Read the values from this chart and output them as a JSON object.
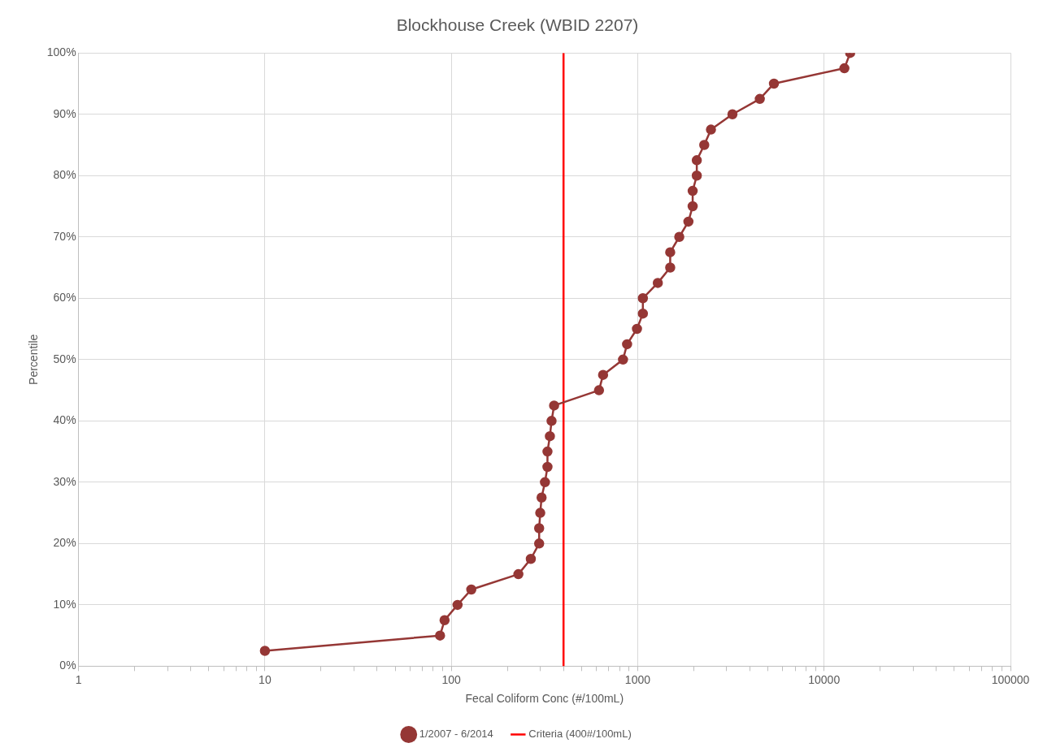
{
  "chart_data": {
    "type": "line",
    "title": "Blockhouse Creek (WBID 2207)",
    "xlabel": "Fecal Coliform Conc (#/100mL)",
    "ylabel": "Percentile",
    "log": "x",
    "xlim": [
      1,
      100000
    ],
    "xticks": [
      1,
      {
        "value": 2,
        "label": null
      },
      {
        "value": 3,
        "label": null
      },
      {
        "value": 4,
        "label": null
      },
      {
        "value": 5,
        "label": null
      },
      {
        "value": 6,
        "label": null
      },
      {
        "value": 7,
        "label": null
      },
      {
        "value": 8,
        "label": null
      },
      {
        "value": 9,
        "label": null
      },
      10,
      {
        "value": 20,
        "label": null
      },
      {
        "value": 30,
        "label": null
      },
      {
        "value": 40,
        "label": null
      },
      {
        "value": 50,
        "label": null
      },
      {
        "value": 60,
        "label": null
      },
      {
        "value": 70,
        "label": null
      },
      {
        "value": 80,
        "label": null
      },
      {
        "value": 90,
        "label": null
      },
      100,
      {
        "value": 200,
        "label": null
      },
      {
        "value": 300,
        "label": null
      },
      {
        "value": 400,
        "label": null
      },
      {
        "value": 500,
        "label": null
      },
      {
        "value": 600,
        "label": null
      },
      {
        "value": 700,
        "label": null
      },
      {
        "value": 800,
        "label": null
      },
      {
        "value": 900,
        "label": null
      },
      1000,
      {
        "value": 2000,
        "label": null
      },
      {
        "value": 3000,
        "label": null
      },
      {
        "value": 4000,
        "label": null
      },
      {
        "value": 5000,
        "label": null
      },
      {
        "value": 6000,
        "label": null
      },
      {
        "value": 7000,
        "label": null
      },
      {
        "value": 8000,
        "label": null
      },
      {
        "value": 9000,
        "label": null
      },
      10000,
      {
        "value": 20000,
        "label": null
      },
      {
        "value": 30000,
        "label": null
      },
      {
        "value": 40000,
        "label": null
      },
      {
        "value": 50000,
        "label": null
      },
      {
        "value": 60000,
        "label": null
      },
      {
        "value": 70000,
        "label": null
      },
      {
        "value": 80000,
        "label": null
      },
      {
        "value": 90000,
        "label": null
      },
      100000
    ],
    "ylim": [
      0,
      100
    ],
    "yticks": [
      {
        "value": 0,
        "label": "0%"
      },
      {
        "value": 10,
        "label": "10%"
      },
      {
        "value": 20,
        "label": "20%"
      },
      {
        "value": 30,
        "label": "30%"
      },
      {
        "value": 40,
        "label": "40%"
      },
      {
        "value": 50,
        "label": "50%"
      },
      {
        "value": 60,
        "label": "60%"
      },
      {
        "value": 70,
        "label": "70%"
      },
      {
        "value": 80,
        "label": "80%"
      },
      {
        "value": 90,
        "label": "90%"
      },
      {
        "value": 100,
        "label": "100%"
      }
    ],
    "grid": true,
    "legend": "bottom",
    "series": [
      {
        "name": "1/2007 - 6/2014",
        "color": "#953735",
        "marker": "circle",
        "x": [
          10,
          87,
          92,
          108,
          128,
          229,
          267,
          296,
          296,
          300,
          305,
          318,
          328,
          328,
          338,
          345,
          356,
          620,
          652,
          834,
          877,
          991,
          1066,
          1066,
          1282,
          1494,
          1494,
          1671,
          1871,
          1972,
          1972,
          2075,
          2075,
          2275,
          2472,
          3223,
          4519,
          5383,
          12850,
          13800
        ],
        "values": [
          2.5,
          5,
          7.5,
          10,
          12.5,
          15,
          17.5,
          20,
          22.5,
          25,
          27.5,
          30,
          32.5,
          35,
          37.5,
          40,
          42.5,
          45,
          47.5,
          50,
          52.5,
          55,
          57.5,
          60,
          62.5,
          65,
          67.5,
          70,
          72.5,
          75,
          77.5,
          80,
          82.5,
          85,
          87.5,
          90,
          92.5,
          95,
          97.5,
          100
        ]
      },
      {
        "name": "Criteria (400#/100mL)",
        "color": "#ff0000",
        "marker": "none",
        "x": [
          400,
          400
        ],
        "values": [
          0,
          100
        ]
      }
    ]
  }
}
